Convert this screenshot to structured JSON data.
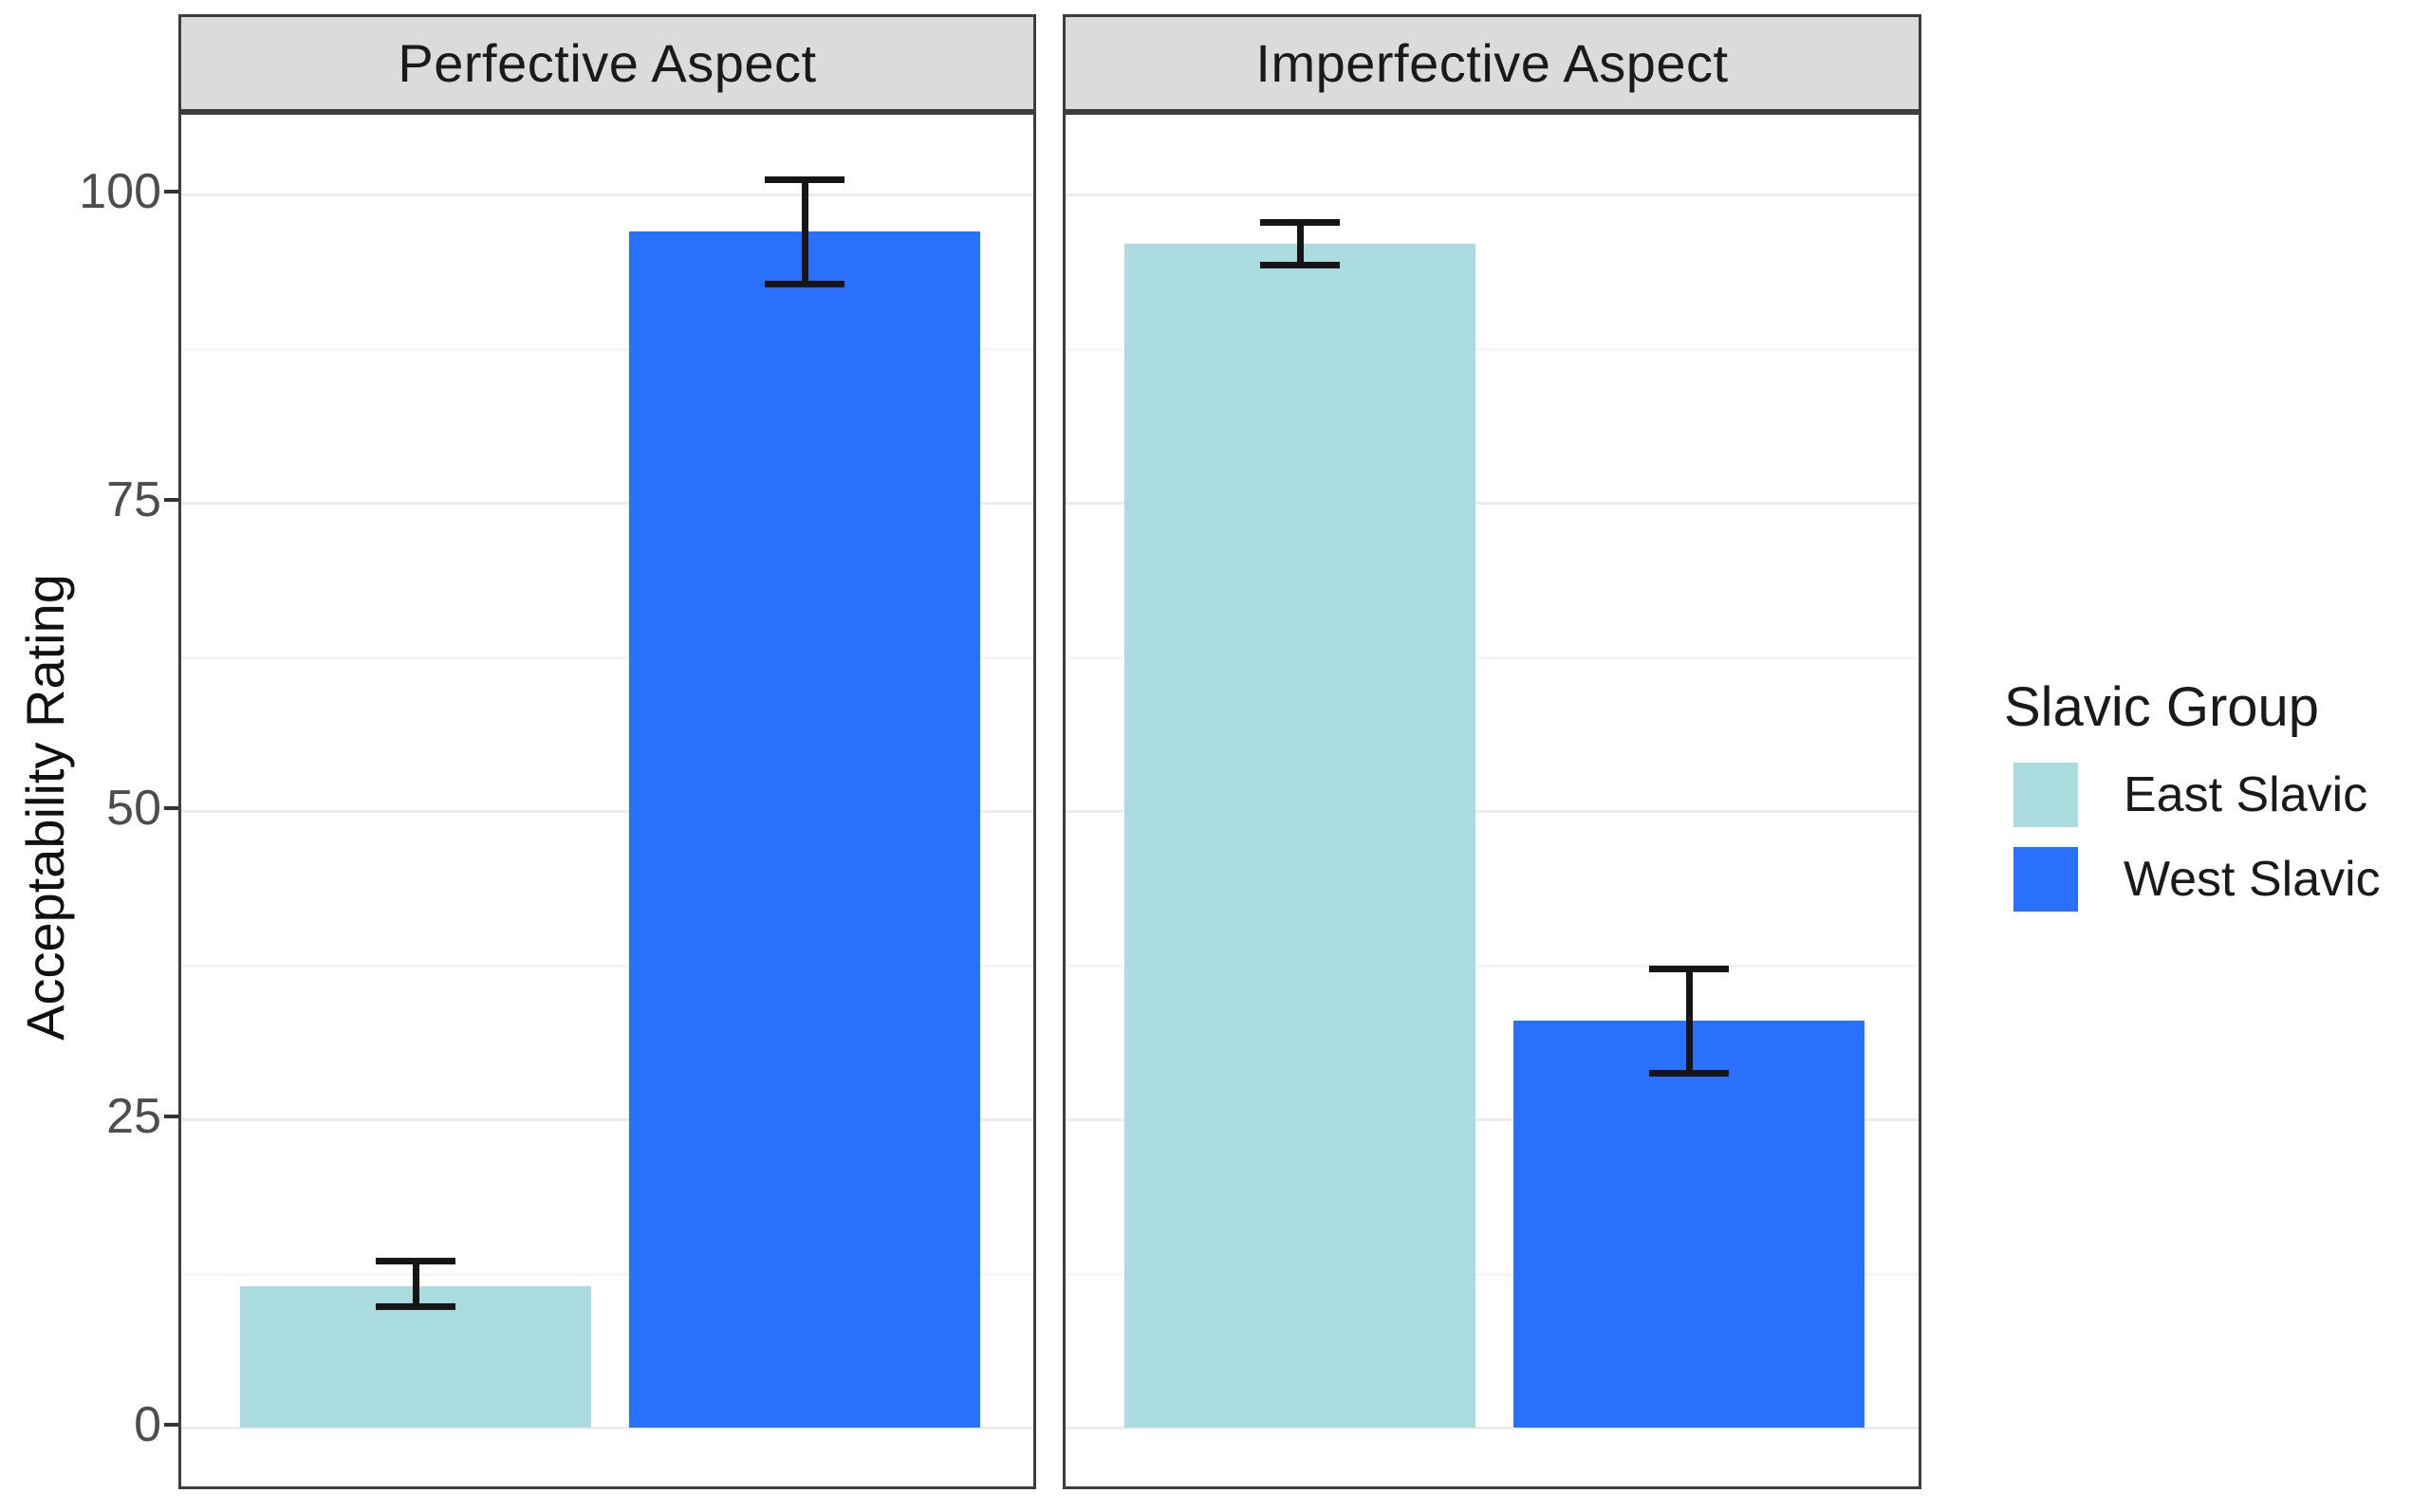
{
  "chart_data": {
    "type": "bar",
    "title": "",
    "xlabel": "",
    "ylabel": "Acceptability Rating",
    "ylim": [
      0,
      106.5
    ],
    "yticks": [
      0,
      25,
      50,
      75,
      100
    ],
    "minor_gridlines": [
      12.5,
      37.5,
      62.5,
      87.5
    ],
    "grid": "on",
    "error_bars": "on",
    "legend_position": "right",
    "facets": [
      {
        "label": "Perfective Aspect",
        "bars": [
          {
            "group": "East Slavic",
            "value": 11.5,
            "ci_low": 9.5,
            "ci_high": 13.8
          },
          {
            "group": "West Slavic",
            "value": 97,
            "ci_low": 92.5,
            "ci_high": 101.5
          }
        ]
      },
      {
        "label": "Imperfective Aspect",
        "bars": [
          {
            "group": "East Slavic",
            "value": 96,
            "ci_low": 94,
            "ci_high": 98
          },
          {
            "group": "West Slavic",
            "value": 33,
            "ci_low": 28.5,
            "ci_high": 37.5
          }
        ]
      }
    ],
    "legend": {
      "title": "Slavic Group",
      "entries": [
        {
          "label": "East Slavic",
          "color": "#AADBDE"
        },
        {
          "label": "West Slavic",
          "color": "#2970FC"
        }
      ]
    },
    "colors": {
      "east_slavic": "#AADBDE",
      "west_slavic": "#2970FC",
      "strip_background": "#dbdbdb",
      "panel_border": "#3d3d3d",
      "error_bar": "#161616"
    }
  }
}
